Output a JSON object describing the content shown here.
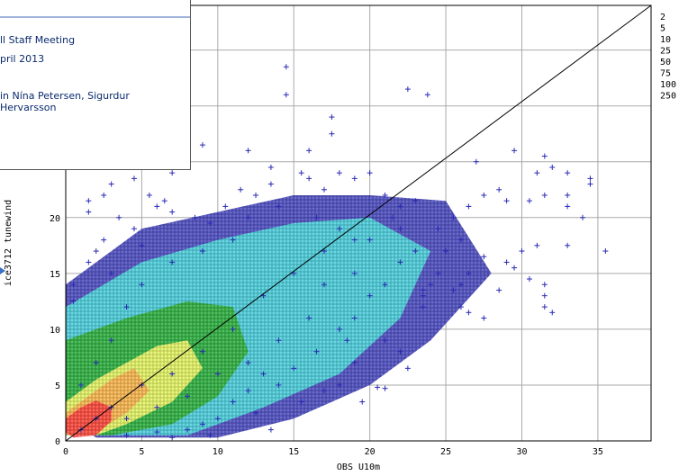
{
  "overlay": {
    "line1": "ll Staff Meeting",
    "line2": "pril 2013",
    "line3": "in Nína Petersen, Sigurdur Hervarsson"
  },
  "chart_data": {
    "type": "scatter",
    "title": "",
    "xlabel": "OBS U10m",
    "ylabel": "ice3712 tunewind",
    "xlim": [
      0,
      38.5
    ],
    "ylim": [
      0,
      39
    ],
    "grid": true,
    "x_ticks": [
      0,
      5,
      10,
      15,
      20,
      25,
      30,
      35
    ],
    "y_ticks": [
      0,
      5,
      10,
      15,
      20
    ],
    "reference_line": [
      [
        0,
        0
      ],
      [
        38.5,
        39
      ]
    ],
    "legend": {
      "placement": "right",
      "entries": [
        "2",
        "5",
        "10",
        "25",
        "50",
        "75",
        "100",
        "250"
      ]
    },
    "colors": {
      "gridline": "#aaaaaa",
      "density_bins": [
        "#2a2ab5",
        "#44e0e0",
        "#6ec86e",
        "#22aa22",
        "#ffff66",
        "#ffaa44",
        "#ff3030",
        "#cc0000"
      ]
    },
    "density_regions": [
      {
        "level": "2",
        "color": "#2a2ab5",
        "polygon": [
          [
            0,
            14
          ],
          [
            5,
            19
          ],
          [
            10,
            20.5
          ],
          [
            15,
            22
          ],
          [
            20,
            22
          ],
          [
            25,
            21.5
          ],
          [
            28,
            15
          ],
          [
            24,
            9
          ],
          [
            20,
            5
          ],
          [
            15,
            2
          ],
          [
            10,
            0.3
          ],
          [
            2,
            0.3
          ],
          [
            0,
            2
          ]
        ]
      },
      {
        "level": "5",
        "color": "#44e0e0",
        "polygon": [
          [
            0,
            12
          ],
          [
            5,
            16
          ],
          [
            10,
            18
          ],
          [
            15,
            19.5
          ],
          [
            20,
            20
          ],
          [
            24,
            17
          ],
          [
            22,
            11
          ],
          [
            18,
            6
          ],
          [
            13,
            3
          ],
          [
            8,
            0.5
          ],
          [
            0,
            0.5
          ]
        ]
      },
      {
        "level": "25",
        "color": "#22aa22",
        "polygon": [
          [
            0,
            9
          ],
          [
            4,
            11
          ],
          [
            8,
            12.5
          ],
          [
            11,
            12
          ],
          [
            12,
            8
          ],
          [
            10,
            4
          ],
          [
            7,
            1.5
          ],
          [
            3,
            0.5
          ],
          [
            0,
            0.5
          ]
        ]
      },
      {
        "level": "50",
        "color": "#ffff66",
        "polygon": [
          [
            0,
            3.5
          ],
          [
            2,
            5.5
          ],
          [
            4,
            7
          ],
          [
            6,
            8.5
          ],
          [
            8,
            9
          ],
          [
            9,
            6.5
          ],
          [
            7,
            3.5
          ],
          [
            4,
            1.5
          ],
          [
            2,
            0.5
          ],
          [
            0,
            0.5
          ]
        ]
      },
      {
        "level": "75",
        "color": "#ffaa44",
        "polygon": [
          [
            0,
            2.5
          ],
          [
            1.5,
            4
          ],
          [
            3,
            5.5
          ],
          [
            4.5,
            6.5
          ],
          [
            5.5,
            4.5
          ],
          [
            4,
            2.5
          ],
          [
            2,
            0.8
          ],
          [
            0,
            0.5
          ]
        ]
      },
      {
        "level": "250",
        "color": "#ff3030",
        "polygon": [
          [
            0,
            2
          ],
          [
            1,
            3
          ],
          [
            2,
            3.6
          ],
          [
            3,
            3
          ],
          [
            3,
            1.8
          ],
          [
            2,
            0.5
          ],
          [
            0.5,
            0.3
          ],
          [
            0,
            0.8
          ]
        ]
      }
    ],
    "points": [
      [
        14.5,
        33.5
      ],
      [
        14.5,
        31
      ],
      [
        17.5,
        29
      ],
      [
        17.5,
        27.5
      ],
      [
        22.5,
        31.5
      ],
      [
        23.8,
        31
      ],
      [
        9,
        26.5
      ],
      [
        8,
        25
      ],
      [
        7,
        24
      ],
      [
        12,
        26
      ],
      [
        13.5,
        24.5
      ],
      [
        16,
        26
      ],
      [
        27,
        25
      ],
      [
        29.5,
        26
      ],
      [
        31.5,
        25.5
      ],
      [
        32,
        24.5
      ],
      [
        33,
        24
      ],
      [
        31,
        24
      ],
      [
        34.5,
        23.5
      ],
      [
        34.5,
        23
      ],
      [
        27.5,
        22
      ],
      [
        29,
        21.5
      ],
      [
        28.5,
        22.5
      ],
      [
        30.5,
        21.5
      ],
      [
        31.5,
        22
      ],
      [
        33,
        22
      ],
      [
        33,
        21
      ],
      [
        34,
        20
      ],
      [
        35.5,
        17
      ],
      [
        33,
        17.5
      ],
      [
        31,
        17.5
      ],
      [
        30,
        17
      ],
      [
        29,
        16
      ],
      [
        29.5,
        15.5
      ],
      [
        28.5,
        13.5
      ],
      [
        31.5,
        14
      ],
      [
        31.5,
        13
      ],
      [
        31.5,
        12
      ],
      [
        32,
        11.5
      ],
      [
        30.5,
        14.5
      ],
      [
        27.5,
        16.5
      ],
      [
        26.5,
        15
      ],
      [
        26,
        14
      ],
      [
        26,
        12
      ],
      [
        26.5,
        11.5
      ],
      [
        27.5,
        11
      ],
      [
        25.5,
        13.5
      ],
      [
        21,
        4.7
      ],
      [
        20.5,
        4.8
      ],
      [
        23.5,
        13.5
      ],
      [
        23.5,
        13
      ],
      [
        23.5,
        12
      ],
      [
        24.5,
        15
      ],
      [
        18,
        5
      ],
      [
        17,
        4.5
      ],
      [
        19.5,
        3.5
      ],
      [
        15.5,
        3.5
      ],
      [
        13.5,
        1
      ],
      [
        12.5,
        2.5
      ],
      [
        3.5,
        24.5
      ],
      [
        2.5,
        22
      ],
      [
        1.5,
        21.5
      ],
      [
        3,
        23
      ],
      [
        4.5,
        23.5
      ],
      [
        5.5,
        22
      ],
      [
        6.5,
        21.5
      ],
      [
        7,
        20.5
      ],
      [
        3.5,
        20
      ],
      [
        1.5,
        20.5
      ],
      [
        0.5,
        14
      ],
      [
        0.5,
        12.5
      ],
      [
        1.5,
        16
      ],
      [
        2.5,
        18
      ],
      [
        4.5,
        19
      ],
      [
        6,
        21
      ],
      [
        8.5,
        20
      ],
      [
        9.5,
        19.5
      ],
      [
        10.5,
        21
      ],
      [
        11.5,
        22.5
      ],
      [
        12.5,
        22
      ],
      [
        13.5,
        23
      ],
      [
        16,
        23.5
      ],
      [
        18,
        24
      ],
      [
        19,
        23.5
      ],
      [
        20,
        24
      ],
      [
        15.5,
        24
      ],
      [
        17,
        22.5
      ],
      [
        21,
        22
      ],
      [
        22,
        21
      ],
      [
        23,
        21.5
      ],
      [
        21.5,
        20
      ],
      [
        26.5,
        21
      ],
      [
        25.5,
        20
      ],
      [
        24.5,
        19
      ],
      [
        26,
        18
      ],
      [
        25,
        17
      ],
      [
        22,
        8
      ],
      [
        21,
        9
      ],
      [
        22.5,
        6.5
      ],
      [
        19,
        7
      ],
      [
        18.5,
        9
      ],
      [
        16.5,
        8
      ],
      [
        15,
        6.5
      ],
      [
        14,
        5
      ],
      [
        13,
        6
      ],
      [
        12,
        4.5
      ],
      [
        11,
        3.5
      ],
      [
        10,
        2
      ],
      [
        9,
        1.5
      ],
      [
        8,
        1
      ],
      [
        6,
        0.8
      ],
      [
        4,
        0.5
      ],
      [
        9.5,
        0.5
      ],
      [
        7,
        0.3
      ],
      [
        5,
        17.5
      ],
      [
        3,
        15
      ],
      [
        2,
        17
      ],
      [
        20,
        13
      ],
      [
        19,
        11
      ],
      [
        18,
        10
      ],
      [
        21,
        14
      ],
      [
        22,
        16
      ],
      [
        19,
        18
      ],
      [
        16.5,
        20
      ],
      [
        14,
        21
      ],
      [
        12,
        20
      ],
      [
        11,
        18
      ],
      [
        9,
        17
      ],
      [
        7,
        16
      ],
      [
        5,
        14
      ],
      [
        4,
        12
      ],
      [
        3,
        9
      ],
      [
        2,
        7
      ],
      [
        1,
        5
      ],
      [
        13,
        13
      ],
      [
        11,
        10
      ],
      [
        9,
        8
      ],
      [
        7,
        6
      ],
      [
        5,
        5
      ],
      [
        3,
        3
      ],
      [
        2,
        2
      ],
      [
        1,
        1
      ],
      [
        15,
        15
      ],
      [
        17,
        14
      ],
      [
        19,
        15
      ],
      [
        16,
        11
      ],
      [
        14,
        9
      ],
      [
        12,
        7
      ],
      [
        10,
        6
      ],
      [
        8,
        4
      ],
      [
        6,
        3
      ],
      [
        4,
        2
      ],
      [
        17,
        17
      ],
      [
        18,
        19
      ],
      [
        20,
        18
      ],
      [
        22,
        19
      ],
      [
        23,
        17
      ],
      [
        24,
        14
      ]
    ]
  }
}
